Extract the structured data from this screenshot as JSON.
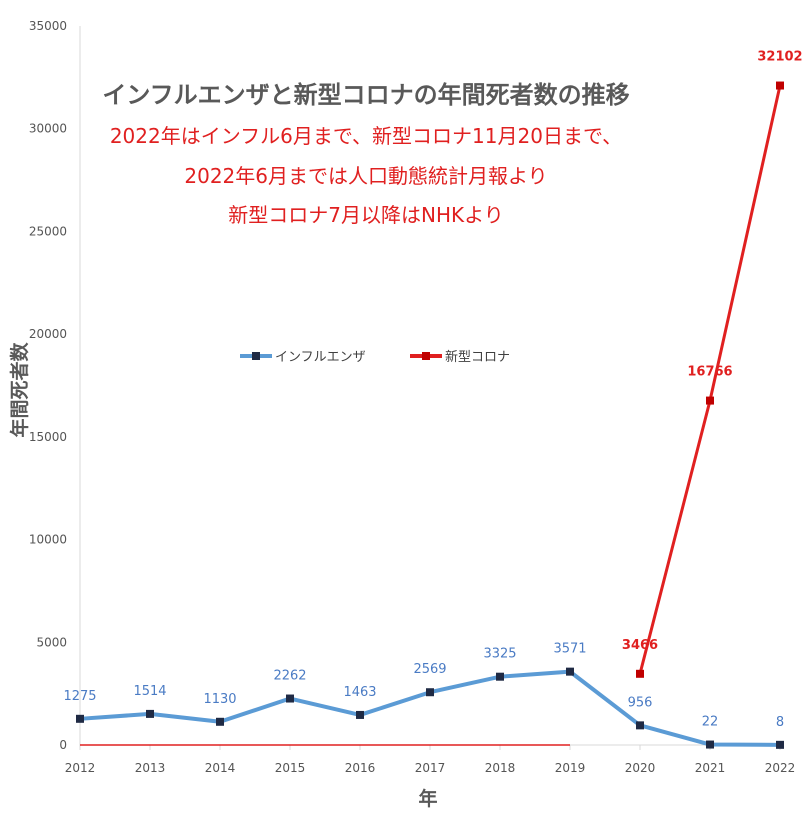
{
  "chart_data": {
    "type": "line",
    "title": "インフルエンザと新型コロナの年間死者数の推移",
    "subtitle_lines": [
      "2022年はインフル6月まで、新型コロナ11月20日まで、",
      "2022年6月までは人口動態統計月報より",
      "新型コロナ7月以降はNHKより"
    ],
    "xlabel": "年",
    "ylabel": "年間死者数",
    "x": [
      2012,
      2013,
      2014,
      2015,
      2016,
      2017,
      2018,
      2019,
      2020,
      2021,
      2022
    ],
    "ylim": [
      0,
      35000
    ],
    "yticks": [
      0,
      5000,
      10000,
      15000,
      20000,
      25000,
      30000,
      35000
    ],
    "grid": false,
    "legend": "middle-left",
    "series": [
      {
        "name": "インフルエンザ",
        "color": "#5b9bd5",
        "values": [
          1275,
          1514,
          1130,
          2262,
          1463,
          2569,
          3325,
          3571,
          956,
          22,
          8
        ],
        "labels": [
          "1275",
          "1514",
          "1130",
          "2262",
          "1463",
          "2569",
          "3325",
          "3571",
          "956",
          "22",
          "8"
        ]
      },
      {
        "name": "新型コロナ",
        "color": "#e02020",
        "values": [
          0,
          0,
          0,
          0,
          0,
          0,
          0,
          0,
          3466,
          16766,
          32102
        ],
        "labels": [
          "",
          "",
          "",
          "",
          "",
          "",
          "",
          "",
          "3466",
          "16766",
          "32102"
        ]
      }
    ]
  }
}
